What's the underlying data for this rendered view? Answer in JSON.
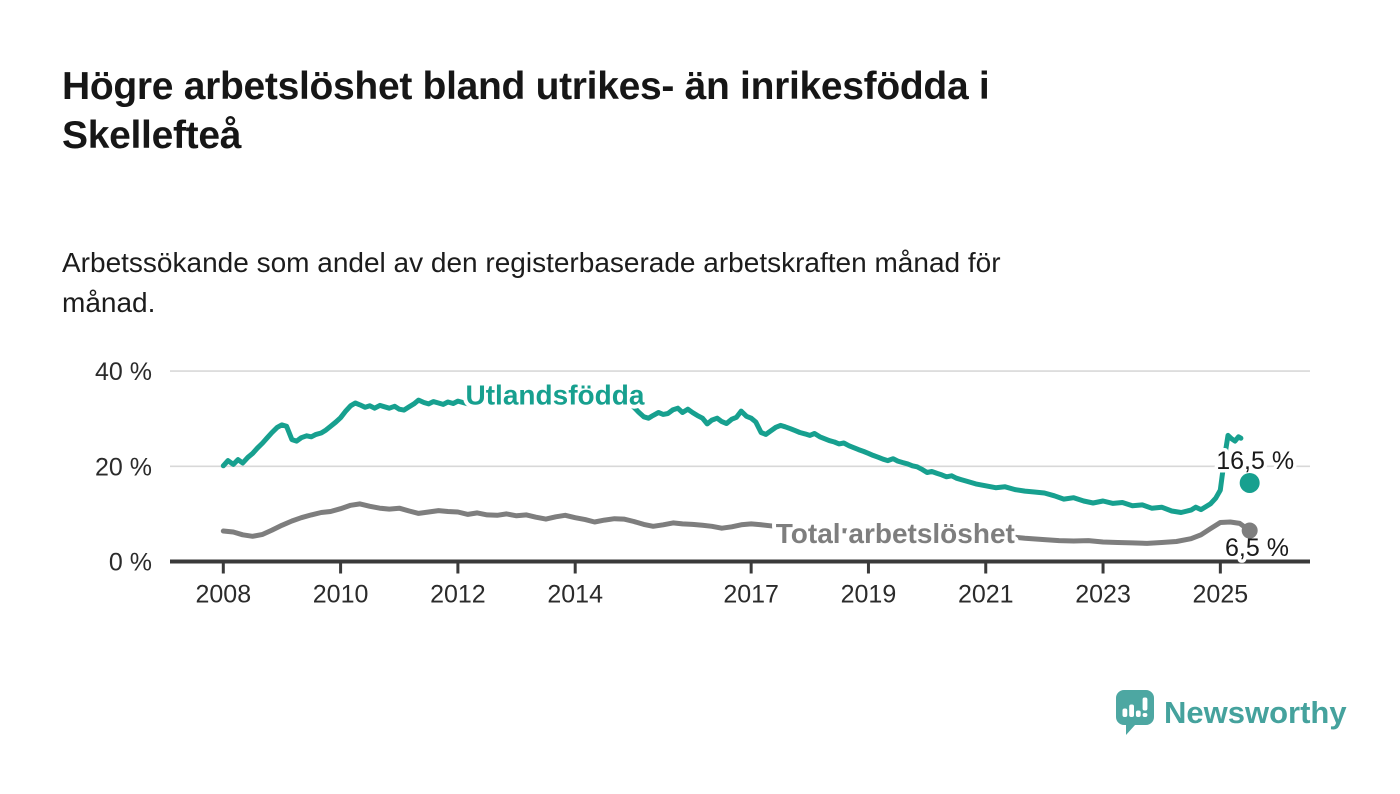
{
  "header": {
    "title_lines": [
      "Högre arbetslöshet bland utrikes- än inrikesfödda i",
      "Skellefteå"
    ],
    "subtitle_lines": [
      "Arbetssökande som andel av den registerbaserade arbetskraften månad för",
      "månad."
    ]
  },
  "footer": {
    "brand": "Newsworthy",
    "brand_color": "#45a29d",
    "logo_icon": "speech-bubble-bar-chart-icon"
  },
  "colors": {
    "series_utlandsfodda": "#17a08f",
    "series_total": "#7e7e7e",
    "axis": "#3a3a3a",
    "gridline": "#d8d8d8",
    "tick_text": "#2b2b2b",
    "annotation_text": "#1a1a1a"
  },
  "chart_data": {
    "type": "line",
    "unit": "%",
    "title": "Högre arbetslöshet bland utrikes- än inrikesfödda i Skellefteå",
    "subtitle": "Arbetssökande som andel av den registerbaserade arbetskraften månad för månad.",
    "grid": "horizontal-only",
    "x_axis": {
      "ticks": [
        2008,
        2010,
        2012,
        2014,
        2017,
        2019,
        2021,
        2023,
        2025
      ],
      "labels": [
        "2008",
        "2010",
        "2012",
        "2014",
        "2017",
        "2019",
        "2021",
        "2023",
        "2025"
      ],
      "range": [
        2007.1,
        2026.5
      ]
    },
    "y_axis": {
      "ticks": [
        0,
        20,
        40
      ],
      "labels": [
        "0 %",
        "20 %",
        "40 %"
      ],
      "range": [
        0,
        42
      ]
    },
    "series": [
      {
        "name": "Utlandsfödda",
        "color": "#17a08f",
        "inline_label": {
          "text": "Utlandsfödda",
          "x": 2012.13,
          "y": 33.0
        },
        "latest": {
          "x": 2025.5,
          "y": 16.5,
          "label": "16,5 %",
          "label_x": 2024.93,
          "label_y": 19.4
        },
        "line_ends_before_latest": true,
        "points": [
          [
            2008.0,
            20.1
          ],
          [
            2008.08,
            21.2
          ],
          [
            2008.17,
            20.4
          ],
          [
            2008.25,
            21.4
          ],
          [
            2008.33,
            20.7
          ],
          [
            2008.42,
            21.9
          ],
          [
            2008.5,
            22.7
          ],
          [
            2008.58,
            23.8
          ],
          [
            2008.67,
            24.9
          ],
          [
            2008.75,
            26.0
          ],
          [
            2008.83,
            27.1
          ],
          [
            2008.92,
            28.2
          ],
          [
            2009.0,
            28.7
          ],
          [
            2009.08,
            28.4
          ],
          [
            2009.17,
            25.6
          ],
          [
            2009.25,
            25.3
          ],
          [
            2009.33,
            26.0
          ],
          [
            2009.42,
            26.4
          ],
          [
            2009.5,
            26.2
          ],
          [
            2009.58,
            26.7
          ],
          [
            2009.67,
            27.0
          ],
          [
            2009.75,
            27.6
          ],
          [
            2009.83,
            28.4
          ],
          [
            2009.92,
            29.3
          ],
          [
            2010.0,
            30.2
          ],
          [
            2010.08,
            31.5
          ],
          [
            2010.17,
            32.7
          ],
          [
            2010.25,
            33.3
          ],
          [
            2010.33,
            32.9
          ],
          [
            2010.42,
            32.4
          ],
          [
            2010.5,
            32.7
          ],
          [
            2010.58,
            32.2
          ],
          [
            2010.67,
            32.8
          ],
          [
            2010.75,
            32.5
          ],
          [
            2010.83,
            32.2
          ],
          [
            2010.92,
            32.6
          ],
          [
            2011.0,
            32.0
          ],
          [
            2011.08,
            31.8
          ],
          [
            2011.17,
            32.5
          ],
          [
            2011.25,
            33.1
          ],
          [
            2011.33,
            33.9
          ],
          [
            2011.42,
            33.4
          ],
          [
            2011.5,
            33.1
          ],
          [
            2011.58,
            33.6
          ],
          [
            2011.67,
            33.3
          ],
          [
            2011.75,
            33.0
          ],
          [
            2011.83,
            33.5
          ],
          [
            2011.92,
            33.2
          ],
          [
            2012.0,
            33.7
          ],
          [
            2012.17,
            33.1
          ],
          [
            2012.33,
            33.8
          ],
          [
            2012.5,
            33.4
          ],
          [
            2012.67,
            34.0
          ],
          [
            2012.83,
            34.3
          ],
          [
            2013.0,
            34.7
          ],
          [
            2013.17,
            35.2
          ],
          [
            2013.33,
            35.6
          ],
          [
            2013.5,
            35.1
          ],
          [
            2013.67,
            34.7
          ],
          [
            2013.83,
            35.0
          ],
          [
            2014.0,
            34.6
          ],
          [
            2014.17,
            34.9
          ],
          [
            2014.33,
            34.4
          ],
          [
            2014.5,
            34.7
          ],
          [
            2014.67,
            34.2
          ],
          [
            2014.83,
            34.4
          ],
          [
            2015.0,
            32.4
          ],
          [
            2015.08,
            31.4
          ],
          [
            2015.17,
            30.4
          ],
          [
            2015.25,
            30.1
          ],
          [
            2015.33,
            30.7
          ],
          [
            2015.42,
            31.3
          ],
          [
            2015.5,
            30.9
          ],
          [
            2015.58,
            31.1
          ],
          [
            2015.67,
            31.9
          ],
          [
            2015.75,
            32.2
          ],
          [
            2015.83,
            31.3
          ],
          [
            2015.92,
            32.0
          ],
          [
            2016.0,
            31.3
          ],
          [
            2016.08,
            30.7
          ],
          [
            2016.17,
            30.1
          ],
          [
            2016.25,
            28.9
          ],
          [
            2016.33,
            29.7
          ],
          [
            2016.42,
            30.1
          ],
          [
            2016.5,
            29.4
          ],
          [
            2016.58,
            29.0
          ],
          [
            2016.67,
            29.9
          ],
          [
            2016.75,
            30.3
          ],
          [
            2016.83,
            31.6
          ],
          [
            2016.92,
            30.5
          ],
          [
            2017.0,
            30.1
          ],
          [
            2017.08,
            29.3
          ],
          [
            2017.17,
            27.1
          ],
          [
            2017.25,
            26.7
          ],
          [
            2017.33,
            27.4
          ],
          [
            2017.42,
            28.2
          ],
          [
            2017.5,
            28.6
          ],
          [
            2017.58,
            28.3
          ],
          [
            2017.67,
            27.9
          ],
          [
            2017.75,
            27.5
          ],
          [
            2017.83,
            27.1
          ],
          [
            2017.92,
            26.8
          ],
          [
            2018.0,
            26.5
          ],
          [
            2018.08,
            26.9
          ],
          [
            2018.17,
            26.2
          ],
          [
            2018.25,
            25.8
          ],
          [
            2018.33,
            25.4
          ],
          [
            2018.42,
            25.1
          ],
          [
            2018.5,
            24.7
          ],
          [
            2018.58,
            24.9
          ],
          [
            2018.67,
            24.3
          ],
          [
            2018.75,
            23.9
          ],
          [
            2018.83,
            23.5
          ],
          [
            2018.92,
            23.1
          ],
          [
            2019.0,
            22.7
          ],
          [
            2019.08,
            22.3
          ],
          [
            2019.17,
            21.9
          ],
          [
            2019.25,
            21.5
          ],
          [
            2019.33,
            21.2
          ],
          [
            2019.42,
            21.6
          ],
          [
            2019.5,
            21.1
          ],
          [
            2019.58,
            20.8
          ],
          [
            2019.67,
            20.5
          ],
          [
            2019.75,
            20.1
          ],
          [
            2019.83,
            19.9
          ],
          [
            2019.92,
            19.3
          ],
          [
            2020.0,
            18.7
          ],
          [
            2020.08,
            18.9
          ],
          [
            2020.17,
            18.5
          ],
          [
            2020.25,
            18.2
          ],
          [
            2020.33,
            17.8
          ],
          [
            2020.42,
            18.0
          ],
          [
            2020.5,
            17.5
          ],
          [
            2020.58,
            17.2
          ],
          [
            2020.67,
            16.9
          ],
          [
            2020.75,
            16.6
          ],
          [
            2020.83,
            16.3
          ],
          [
            2020.92,
            16.1
          ],
          [
            2021.0,
            15.9
          ],
          [
            2021.17,
            15.5
          ],
          [
            2021.33,
            15.7
          ],
          [
            2021.5,
            15.1
          ],
          [
            2021.67,
            14.8
          ],
          [
            2021.83,
            14.6
          ],
          [
            2022.0,
            14.4
          ],
          [
            2022.17,
            13.8
          ],
          [
            2022.33,
            13.1
          ],
          [
            2022.5,
            13.4
          ],
          [
            2022.67,
            12.7
          ],
          [
            2022.83,
            12.3
          ],
          [
            2023.0,
            12.7
          ],
          [
            2023.17,
            12.2
          ],
          [
            2023.33,
            12.4
          ],
          [
            2023.5,
            11.7
          ],
          [
            2023.67,
            11.9
          ],
          [
            2023.83,
            11.2
          ],
          [
            2024.0,
            11.4
          ],
          [
            2024.17,
            10.6
          ],
          [
            2024.33,
            10.3
          ],
          [
            2024.5,
            10.8
          ],
          [
            2024.58,
            11.4
          ],
          [
            2024.67,
            10.9
          ],
          [
            2024.83,
            12.1
          ],
          [
            2024.92,
            13.3
          ],
          [
            2025.0,
            15.0
          ],
          [
            2025.08,
            22.5
          ],
          [
            2025.13,
            26.5
          ],
          [
            2025.19,
            25.8
          ],
          [
            2025.25,
            25.3
          ],
          [
            2025.31,
            26.2
          ],
          [
            2025.35,
            25.9
          ]
        ]
      },
      {
        "name": "Total arbetslöshet",
        "color": "#7e7e7e",
        "inline_label": {
          "text": "Total arbetslöshet",
          "x": 2017.42,
          "y": 3.9
        },
        "latest": {
          "x": 2025.5,
          "y": 6.5,
          "label": "6,5 %",
          "label_x": 2025.08,
          "label_y": 1.2
        },
        "line_ends_before_latest": false,
        "points": [
          [
            2008.0,
            6.4
          ],
          [
            2008.17,
            6.2
          ],
          [
            2008.33,
            5.6
          ],
          [
            2008.5,
            5.3
          ],
          [
            2008.67,
            5.7
          ],
          [
            2008.83,
            6.6
          ],
          [
            2009.0,
            7.6
          ],
          [
            2009.17,
            8.5
          ],
          [
            2009.33,
            9.2
          ],
          [
            2009.5,
            9.8
          ],
          [
            2009.67,
            10.3
          ],
          [
            2009.83,
            10.5
          ],
          [
            2010.0,
            11.1
          ],
          [
            2010.17,
            11.8
          ],
          [
            2010.33,
            12.1
          ],
          [
            2010.5,
            11.6
          ],
          [
            2010.67,
            11.2
          ],
          [
            2010.83,
            11.0
          ],
          [
            2011.0,
            11.2
          ],
          [
            2011.17,
            10.6
          ],
          [
            2011.33,
            10.1
          ],
          [
            2011.5,
            10.4
          ],
          [
            2011.67,
            10.7
          ],
          [
            2011.83,
            10.5
          ],
          [
            2012.0,
            10.4
          ],
          [
            2012.17,
            9.9
          ],
          [
            2012.33,
            10.2
          ],
          [
            2012.5,
            9.8
          ],
          [
            2012.67,
            9.7
          ],
          [
            2012.83,
            10.0
          ],
          [
            2013.0,
            9.6
          ],
          [
            2013.17,
            9.8
          ],
          [
            2013.33,
            9.3
          ],
          [
            2013.5,
            8.9
          ],
          [
            2013.67,
            9.4
          ],
          [
            2013.83,
            9.7
          ],
          [
            2014.0,
            9.2
          ],
          [
            2014.17,
            8.8
          ],
          [
            2014.33,
            8.3
          ],
          [
            2014.5,
            8.7
          ],
          [
            2014.67,
            9.0
          ],
          [
            2014.83,
            8.9
          ],
          [
            2015.0,
            8.4
          ],
          [
            2015.17,
            7.8
          ],
          [
            2015.33,
            7.4
          ],
          [
            2015.5,
            7.7
          ],
          [
            2015.67,
            8.1
          ],
          [
            2015.83,
            7.9
          ],
          [
            2016.0,
            7.8
          ],
          [
            2016.17,
            7.6
          ],
          [
            2016.33,
            7.4
          ],
          [
            2016.5,
            7.0
          ],
          [
            2016.67,
            7.3
          ],
          [
            2016.83,
            7.7
          ],
          [
            2017.0,
            7.9
          ],
          [
            2017.17,
            7.7
          ],
          [
            2017.33,
            7.5
          ],
          [
            2017.5,
            7.3
          ],
          [
            2017.67,
            7.1
          ],
          [
            2017.83,
            7.0
          ],
          [
            2018.0,
            6.9
          ],
          [
            2018.33,
            6.6
          ],
          [
            2018.67,
            6.4
          ],
          [
            2019.0,
            6.3
          ],
          [
            2019.33,
            6.2
          ],
          [
            2019.67,
            6.1
          ],
          [
            2020.0,
            6.3
          ],
          [
            2020.33,
            6.6
          ],
          [
            2020.67,
            6.2
          ],
          [
            2021.0,
            5.8
          ],
          [
            2021.33,
            5.3
          ],
          [
            2021.67,
            4.9
          ],
          [
            2022.0,
            4.6
          ],
          [
            2022.25,
            4.4
          ],
          [
            2022.5,
            4.3
          ],
          [
            2022.75,
            4.4
          ],
          [
            2023.0,
            4.1
          ],
          [
            2023.25,
            4.0
          ],
          [
            2023.5,
            3.9
          ],
          [
            2023.75,
            3.8
          ],
          [
            2024.0,
            4.0
          ],
          [
            2024.25,
            4.2
          ],
          [
            2024.5,
            4.8
          ],
          [
            2024.67,
            5.6
          ],
          [
            2024.83,
            6.9
          ],
          [
            2025.0,
            8.2
          ],
          [
            2025.17,
            8.3
          ],
          [
            2025.33,
            8.0
          ],
          [
            2025.5,
            6.5
          ]
        ]
      }
    ]
  }
}
